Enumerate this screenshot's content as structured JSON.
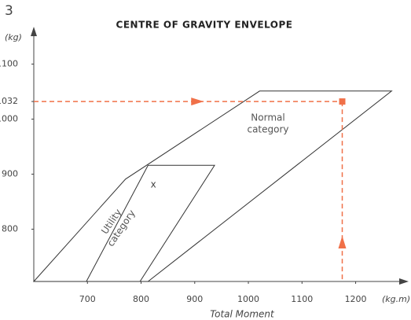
{
  "page_number": "3",
  "chart_data": {
    "type": "envelope",
    "title": "CENTRE OF GRAVITY ENVELOPE",
    "x_label": "Total Moment",
    "x_unit": "(kg.m)",
    "y_unit": "(kg)",
    "xlim": [
      600,
      1290
    ],
    "ylim": [
      705,
      1165
    ],
    "xticks": [
      700,
      800,
      900,
      1000,
      1100,
      1200
    ],
    "yticks": [
      800,
      900,
      1000,
      1032,
      1100
    ],
    "line_color": "#333333",
    "series": [
      {
        "name": "Normal category",
        "x": [
          600,
          771,
          1021,
          1267,
          813
        ],
        "y": [
          705,
          891,
          1051,
          1051,
          705
        ]
      },
      {
        "name": "Utility category",
        "x": [
          698,
          813,
          937,
          798
        ],
        "y": [
          705,
          916,
          916,
          705
        ]
      }
    ],
    "point": {
      "x": 1175,
      "y": 1032,
      "color": "#f07048"
    },
    "marker": {
      "text": "x",
      "x": 823,
      "y": 881
    }
  }
}
